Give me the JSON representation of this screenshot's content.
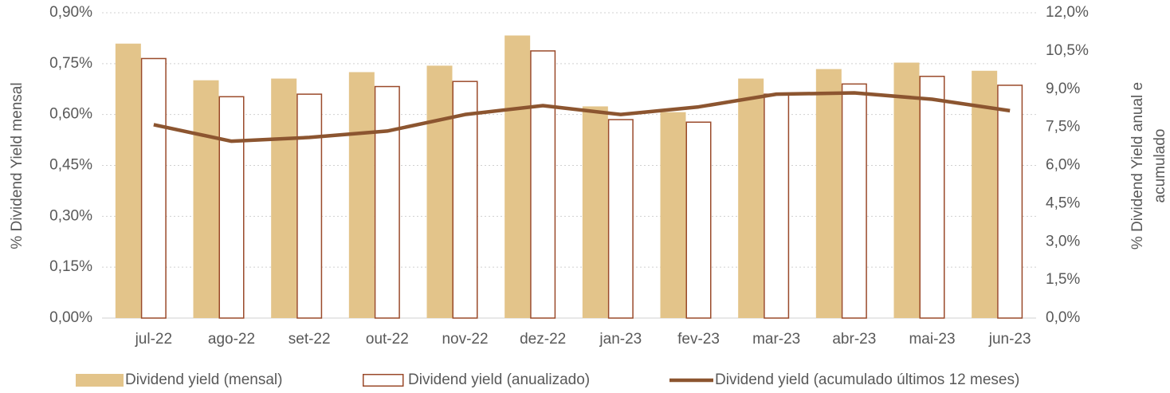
{
  "chart_data": {
    "type": "bar_line",
    "ylabel": "% Dividend  Yield mensal",
    "y2label": [
      "% Dividend  Yield anual e",
      "acumulado"
    ],
    "categories": [
      "jul-22",
      "ago-22",
      "set-22",
      "out-22",
      "nov-22",
      "dez-22",
      "jan-23",
      "fev-23",
      "mar-23",
      "abr-23",
      "mai-23",
      "jun-23"
    ],
    "series": [
      {
        "name": "Dividend yield (mensal)",
        "type": "bar",
        "color": "#e3c48a",
        "axis": "y",
        "values": [
          0.809,
          0.701,
          0.706,
          0.725,
          0.744,
          0.833,
          0.624,
          0.607,
          0.706,
          0.734,
          0.753,
          0.729
        ]
      },
      {
        "name": "Dividend yield (anualizado)",
        "type": "bar_outline",
        "color": "#9a4a2a",
        "axis": "y2",
        "values": [
          10.2,
          8.7,
          8.8,
          9.1,
          9.3,
          10.5,
          7.8,
          7.7,
          8.8,
          9.2,
          9.5,
          9.15
        ]
      },
      {
        "name": "Dividend yield (acumulado últimos 12 meses)",
        "type": "line",
        "color": "#8c5530",
        "axis": "y2",
        "values": [
          7.6,
          6.95,
          7.1,
          7.35,
          8.0,
          8.35,
          8.0,
          8.3,
          8.8,
          8.85,
          8.6,
          8.15
        ]
      }
    ],
    "ylim": [
      0,
      0.9
    ],
    "yticks": [
      {
        "value": 0,
        "label": "0,00%"
      },
      {
        "value": 0.15,
        "label": "0,15%"
      },
      {
        "value": 0.3,
        "label": "0,30%"
      },
      {
        "value": 0.45,
        "label": "0,45%"
      },
      {
        "value": 0.6,
        "label": "0,60%"
      },
      {
        "value": 0.75,
        "label": "0,75%"
      },
      {
        "value": 0.9,
        "label": "0,90%"
      }
    ],
    "y2lim": [
      0,
      12
    ],
    "y2ticks": [
      {
        "value": 0,
        "label": "0,0%"
      },
      {
        "value": 1.5,
        "label": "1,5%"
      },
      {
        "value": 3,
        "label": "3,0%"
      },
      {
        "value": 4.5,
        "label": "4,5%"
      },
      {
        "value": 6,
        "label": "6,0%"
      },
      {
        "value": 7.5,
        "label": "7,5%"
      },
      {
        "value": 9,
        "label": "9,0%"
      },
      {
        "value": 10.5,
        "label": "10,5%"
      },
      {
        "value": 12,
        "label": "12,0%"
      }
    ],
    "grid": true,
    "legend": "bottom"
  }
}
